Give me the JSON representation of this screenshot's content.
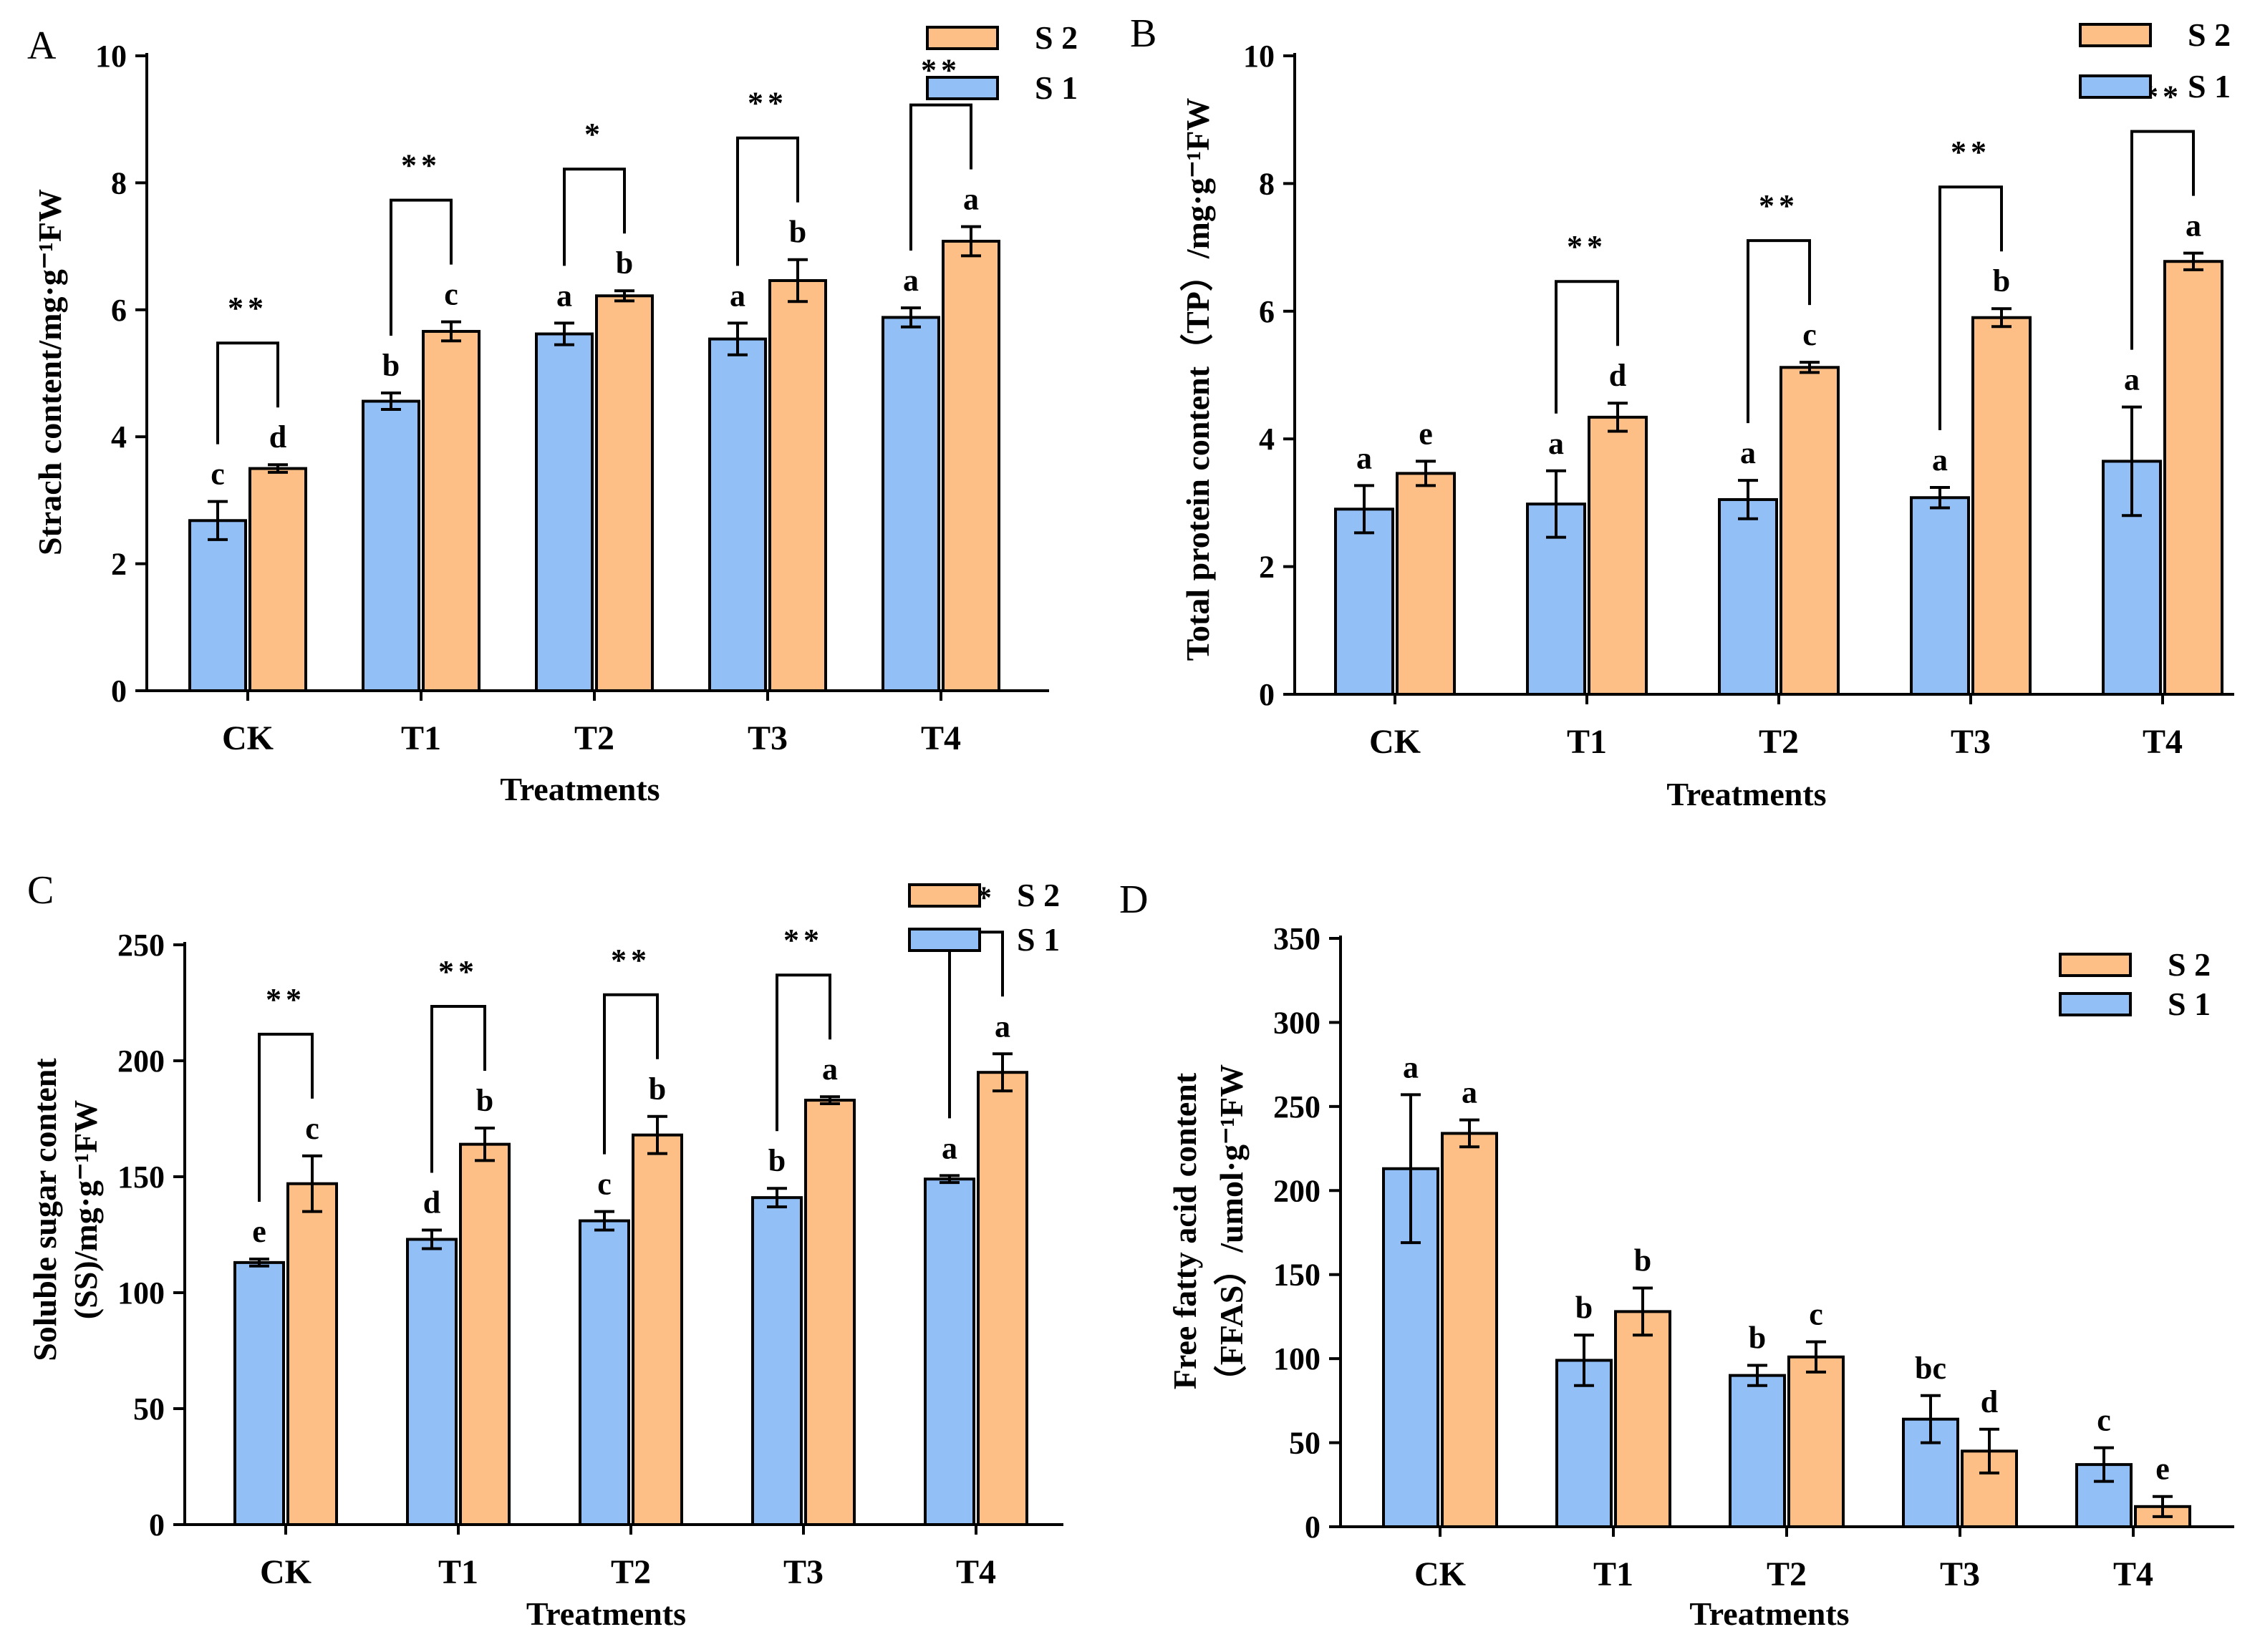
{
  "colors": {
    "S1": "#93bff7",
    "S2": "#fdbf85",
    "stroke": "#000000"
  },
  "chart_data": [
    {
      "type": "bar",
      "panel": "A",
      "title": "",
      "xlabel": "Treatments",
      "ylabel": "Strach content/mg·g⁻¹FW",
      "ylim": [
        0,
        10
      ],
      "yticks": [
        "0",
        "2",
        "4",
        "6",
        "8",
        "10"
      ],
      "categories": [
        "CK",
        "T1",
        "T2",
        "T3",
        "T4"
      ],
      "legend": [
        "S 2",
        "S 1"
      ],
      "legend_position": "top-right",
      "series": [
        {
          "name": "S1",
          "values": [
            2.68,
            4.56,
            5.62,
            5.54,
            5.88
          ],
          "errors": [
            0.3,
            0.13,
            0.17,
            0.25,
            0.15
          ],
          "letters": [
            "c",
            "b",
            "a",
            "a",
            "a"
          ]
        },
        {
          "name": "S2",
          "values": [
            3.5,
            5.66,
            6.22,
            6.46,
            7.08
          ],
          "errors": [
            0.06,
            0.15,
            0.08,
            0.33,
            0.23
          ],
          "letters": [
            "d",
            "c",
            "b",
            "b",
            "a"
          ]
        }
      ],
      "significance": [
        "**",
        "**",
        "*",
        "**",
        "**"
      ]
    },
    {
      "type": "bar",
      "panel": "B",
      "title": "",
      "xlabel": "Treatments",
      "ylabel": "Total protein content（TP）/mg·g⁻¹FW",
      "ylim": [
        0,
        10
      ],
      "yticks": [
        "0",
        "2",
        "4",
        "6",
        "8",
        "10"
      ],
      "categories": [
        "CK",
        "T1",
        "T2",
        "T3",
        "T4"
      ],
      "legend": [
        "S 2",
        "S 1"
      ],
      "legend_position": "top-right",
      "series": [
        {
          "name": "S1",
          "values": [
            2.9,
            2.98,
            3.05,
            3.08,
            3.65
          ],
          "errors": [
            0.37,
            0.52,
            0.3,
            0.16,
            0.85
          ],
          "letters": [
            "a",
            "a",
            "a",
            "a",
            "a"
          ]
        },
        {
          "name": "S2",
          "values": [
            3.46,
            4.34,
            5.12,
            5.9,
            6.78
          ],
          "errors": [
            0.19,
            0.22,
            0.08,
            0.14,
            0.13
          ],
          "letters": [
            "e",
            "d",
            "c",
            "b",
            "a"
          ]
        }
      ],
      "significance": [
        "",
        "**",
        "**",
        "**",
        "**"
      ]
    },
    {
      "type": "bar",
      "panel": "C",
      "title": "",
      "xlabel": "Treatments",
      "ylabel_line1": "Soluble sugar content",
      "ylabel_line2": "(SS)/mg·g⁻¹FW",
      "ylim": [
        0,
        250
      ],
      "yticks": [
        "0",
        "50",
        "100",
        "150",
        "200",
        "250"
      ],
      "categories": [
        "CK",
        "T1",
        "T2",
        "T3",
        "T4"
      ],
      "legend": [
        "S 2",
        "S 1"
      ],
      "legend_position": "top-right",
      "series": [
        {
          "name": "S1",
          "values": [
            113,
            123,
            131,
            141,
            149
          ],
          "errors": [
            1.5,
            4,
            4,
            4,
            1.5
          ],
          "letters": [
            "e",
            "d",
            "c",
            "b",
            "a"
          ]
        },
        {
          "name": "S2",
          "values": [
            147,
            164,
            168,
            183,
            195
          ],
          "errors": [
            12,
            7,
            8,
            1.5,
            8
          ],
          "letters": [
            "c",
            "b",
            "b",
            "a",
            "a"
          ]
        }
      ],
      "significance": [
        "**",
        "**",
        "**",
        "**",
        "**"
      ]
    },
    {
      "type": "bar",
      "panel": "D",
      "title": "",
      "xlabel": "Treatments",
      "ylabel_line1": "Free fatty acid content",
      "ylabel_line2": "（FFAS）/umol·g⁻¹FW",
      "ylim": [
        0,
        350
      ],
      "yticks": [
        "0",
        "50",
        "100",
        "150",
        "200",
        "250",
        "300",
        "350"
      ],
      "categories": [
        "CK",
        "T1",
        "T2",
        "T3",
        "T4"
      ],
      "legend": [
        "S 2",
        "S 1"
      ],
      "legend_position": "top-right",
      "series": [
        {
          "name": "S1",
          "values": [
            213,
            99,
            90,
            64,
            37
          ],
          "errors": [
            44,
            15,
            6,
            14,
            10
          ],
          "letters": [
            "a",
            "b",
            "b",
            "bc",
            "c"
          ]
        },
        {
          "name": "S2",
          "values": [
            234,
            128,
            101,
            45,
            12
          ],
          "errors": [
            8,
            14,
            9,
            13,
            6
          ],
          "letters": [
            "a",
            "b",
            "c",
            "d",
            "e"
          ]
        }
      ],
      "significance": [
        "",
        "",
        "",
        "",
        ""
      ]
    }
  ]
}
